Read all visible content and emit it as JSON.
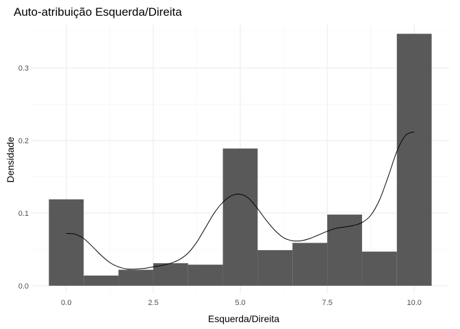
{
  "chart_data": {
    "type": "bar",
    "title": "Auto-atribuição Esquerda/Direita",
    "xlabel": "Esquerda/Direita",
    "ylabel": "Densidade",
    "xlim": [
      -0.5,
      10.5
    ],
    "ylim": [
      0,
      0.35
    ],
    "x_ticks": [
      0,
      2.5,
      5,
      7.5,
      10
    ],
    "x_tick_labels": [
      "0.0",
      "2.5",
      "5.0",
      "7.5",
      "10.0"
    ],
    "y_ticks": [
      0,
      0.1,
      0.2,
      0.3
    ],
    "y_tick_labels": [
      "0.0",
      "0.1",
      "0.2",
      "0.3"
    ],
    "grid": true,
    "legend": "none",
    "bar_color": "#595959",
    "bins": [
      {
        "x0": -0.5,
        "x1": 0.5,
        "value": 0.119
      },
      {
        "x0": 0.5,
        "x1": 1.5,
        "value": 0.014
      },
      {
        "x0": 1.5,
        "x1": 2.5,
        "value": 0.022
      },
      {
        "x0": 2.5,
        "x1": 3.5,
        "value": 0.031
      },
      {
        "x0": 3.5,
        "x1": 4.5,
        "value": 0.029
      },
      {
        "x0": 4.5,
        "x1": 5.5,
        "value": 0.189
      },
      {
        "x0": 5.5,
        "x1": 6.5,
        "value": 0.049
      },
      {
        "x0": 6.5,
        "x1": 7.5,
        "value": 0.059
      },
      {
        "x0": 7.5,
        "x1": 8.5,
        "value": 0.098
      },
      {
        "x0": 8.5,
        "x1": 9.5,
        "value": 0.047
      },
      {
        "x0": 9.5,
        "x1": 10.5,
        "value": 0.347
      }
    ],
    "density_curve": {
      "x": [
        0,
        0.25,
        0.5,
        0.75,
        1,
        1.25,
        1.5,
        1.75,
        2,
        2.25,
        2.5,
        2.75,
        3,
        3.25,
        3.5,
        3.75,
        4,
        4.25,
        4.5,
        4.75,
        5,
        5.25,
        5.5,
        5.75,
        6,
        6.25,
        6.5,
        6.75,
        7,
        7.25,
        7.5,
        7.75,
        8,
        8.25,
        8.5,
        8.75,
        9,
        9.25,
        9.5,
        9.75,
        10
      ],
      "y": [
        0.072,
        0.071,
        0.065,
        0.054,
        0.042,
        0.032,
        0.026,
        0.023,
        0.023,
        0.024,
        0.026,
        0.028,
        0.031,
        0.036,
        0.045,
        0.06,
        0.08,
        0.1,
        0.115,
        0.124,
        0.126,
        0.12,
        0.106,
        0.09,
        0.076,
        0.066,
        0.062,
        0.062,
        0.065,
        0.07,
        0.075,
        0.079,
        0.081,
        0.083,
        0.087,
        0.097,
        0.118,
        0.15,
        0.185,
        0.207,
        0.212
      ]
    }
  }
}
